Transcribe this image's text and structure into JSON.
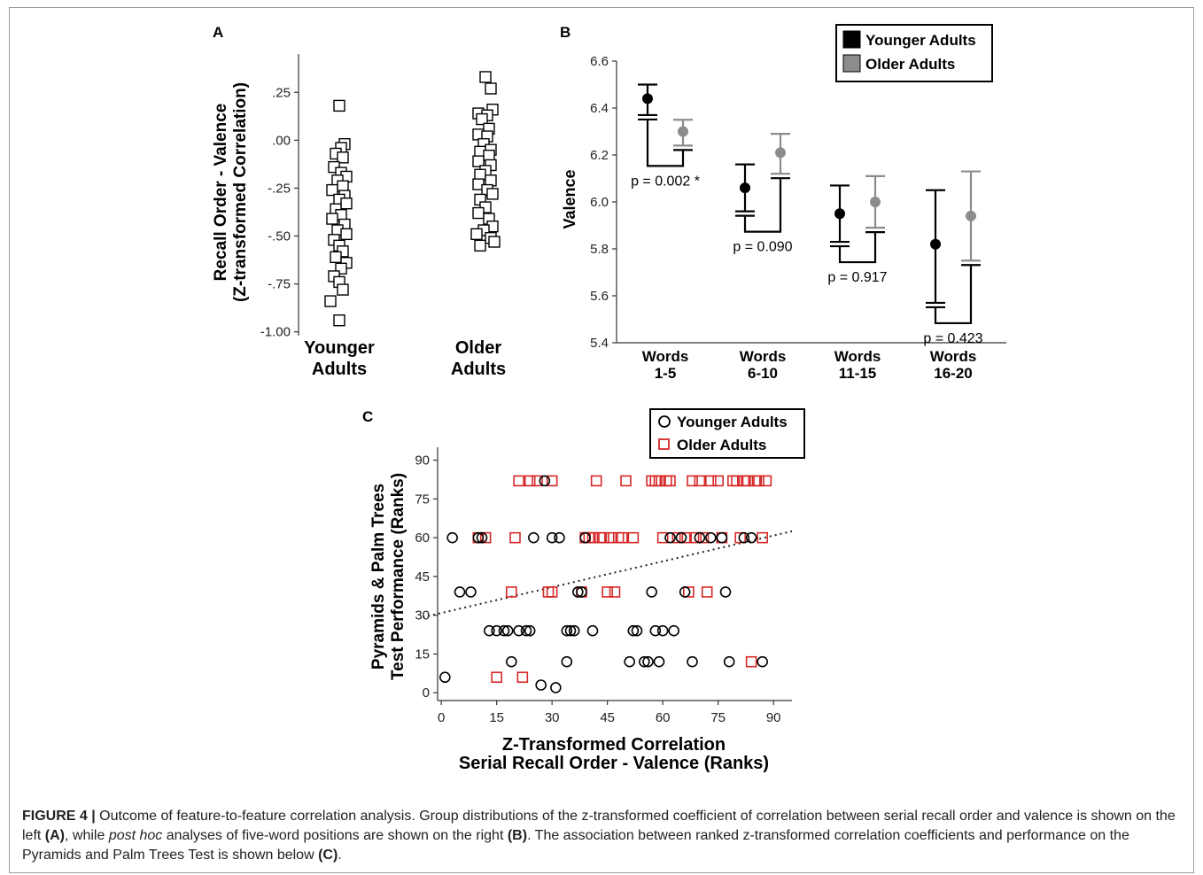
{
  "panel_labels": {
    "a": "A",
    "b": "B",
    "c": "C"
  },
  "chart_data": [
    {
      "panel": "A",
      "type": "scatter",
      "ylabel_line1": "Recall Order - Valence",
      "ylabel_line2": "(Z-transformed Correlation)",
      "yticks": [
        ".25",
        ".00",
        "-.25",
        "-.50",
        "-.75",
        "-1.00"
      ],
      "ytick_values": [
        0.25,
        0.0,
        -0.25,
        -0.5,
        -0.75,
        -1.0
      ],
      "ylim": [
        -1.02,
        0.45
      ],
      "categories": [
        {
          "line1": "Younger",
          "line2": "Adults"
        },
        {
          "line1": "Older",
          "line2": "Adults"
        }
      ],
      "series": [
        {
          "values": [
            0.18,
            -0.02,
            -0.04,
            -0.07,
            -0.09,
            -0.14,
            -0.17,
            -0.19,
            -0.21,
            -0.24,
            -0.26,
            -0.29,
            -0.31,
            -0.33,
            -0.36,
            -0.39,
            -0.41,
            -0.44,
            -0.47,
            -0.49,
            -0.52,
            -0.55,
            -0.58,
            -0.61,
            -0.64,
            -0.67,
            -0.71,
            -0.74,
            -0.78,
            -0.84,
            -0.94
          ],
          "jitter": [
            0.0,
            0.3,
            0.1,
            -0.2,
            0.2,
            -0.3,
            0.1,
            0.4,
            -0.1,
            0.2,
            -0.4,
            0.3,
            0.0,
            0.4,
            -0.2,
            0.1,
            -0.4,
            0.3,
            -0.1,
            0.4,
            -0.3,
            0.0,
            0.2,
            -0.2,
            0.4,
            0.1,
            -0.3,
            0.0,
            0.2,
            -0.5,
            0.0
          ]
        },
        {
          "values": [
            0.33,
            0.27,
            0.16,
            0.14,
            0.13,
            0.11,
            0.06,
            0.03,
            0.02,
            -0.02,
            -0.05,
            -0.06,
            -0.08,
            -0.11,
            -0.13,
            -0.16,
            -0.18,
            -0.21,
            -0.23,
            -0.26,
            -0.28,
            -0.31,
            -0.35,
            -0.38,
            -0.41,
            -0.45,
            -0.47,
            -0.49,
            -0.51,
            -0.53,
            -0.55
          ],
          "jitter": [
            0.0,
            0.3,
            0.4,
            -0.4,
            0.1,
            -0.2,
            0.2,
            -0.4,
            0.1,
            -0.1,
            0.3,
            -0.3,
            0.2,
            -0.4,
            0.3,
            0.0,
            -0.3,
            0.3,
            -0.4,
            0.1,
            0.4,
            -0.3,
            0.0,
            -0.4,
            0.2,
            0.4,
            -0.1,
            -0.5,
            0.3,
            0.5,
            -0.3
          ]
        }
      ]
    },
    {
      "panel": "B",
      "type": "errorbar",
      "ylabel": "Valence",
      "ylim": [
        5.4,
        6.6
      ],
      "yticks": [
        "5.4",
        "5.6",
        "5.8",
        "6.0",
        "6.2",
        "6.4",
        "6.6"
      ],
      "ytick_values": [
        5.4,
        5.6,
        5.8,
        6.0,
        6.2,
        6.4,
        6.6
      ],
      "categories": [
        {
          "line1": "Words",
          "line2": "1-5"
        },
        {
          "line1": "Words",
          "line2": "6-10"
        },
        {
          "line1": "Words",
          "line2": "11-15"
        },
        {
          "line1": "Words",
          "line2": "16-20"
        }
      ],
      "legend": [
        "Younger Adults",
        "Older Adults"
      ],
      "colors": {
        "younger": "#000000",
        "older": "#8c8c8c"
      },
      "series": [
        {
          "mean": [
            6.44,
            6.06,
            5.95,
            5.82
          ],
          "low": [
            6.37,
            5.96,
            5.83,
            5.57
          ],
          "high": [
            6.5,
            6.16,
            6.07,
            6.05
          ]
        },
        {
          "mean": [
            6.3,
            6.21,
            6.0,
            5.94
          ],
          "low": [
            6.24,
            6.12,
            5.89,
            5.75
          ],
          "high": [
            6.35,
            6.29,
            6.11,
            6.13
          ]
        }
      ],
      "pvalues": [
        "p = 0.002 *",
        "p = 0.090",
        "p = 0.917",
        "p = 0.423"
      ]
    },
    {
      "panel": "C",
      "type": "scatter",
      "xlabel_line1": "Z-Transformed Correlation",
      "xlabel_line2": "Serial Recall Order - Valence (Ranks)",
      "ylabel_line1": "Pyramids & Palm Trees",
      "ylabel_line2": "Test Performance (Ranks)",
      "xlim": [
        -1,
        95
      ],
      "ylim": [
        -3,
        95
      ],
      "xticks": [
        "0",
        "15",
        "30",
        "45",
        "60",
        "75",
        "90"
      ],
      "yticks": [
        "0",
        "15",
        "30",
        "45",
        "60",
        "75",
        "90"
      ],
      "legend": [
        "Younger Adults",
        "Older Adults"
      ],
      "colors": {
        "older": "#d62728"
      },
      "trendline": {
        "x": [
          -5,
          95
        ],
        "y": [
          29.2,
          62.5
        ]
      },
      "younger": {
        "x": [
          1,
          3,
          5,
          8,
          10,
          11,
          13,
          15,
          17,
          18,
          19,
          21,
          23,
          25,
          24,
          27,
          28,
          30,
          31,
          32,
          34,
          34,
          35,
          36,
          37,
          38,
          39,
          41,
          51,
          52,
          53,
          55,
          56,
          57,
          58,
          59,
          60,
          62,
          63,
          65,
          66,
          68,
          70,
          73,
          76,
          77,
          78,
          82,
          84,
          87
        ],
        "y": [
          6,
          60,
          39,
          39,
          60,
          60,
          24,
          24,
          24,
          24,
          12,
          24,
          24,
          60,
          24,
          3,
          82,
          60,
          2,
          60,
          24,
          12,
          24,
          24,
          39,
          39,
          60,
          24,
          12,
          24,
          24,
          12,
          12,
          39,
          24,
          12,
          24,
          60,
          24,
          60,
          39,
          12,
          60,
          60,
          60,
          39,
          12,
          60,
          60,
          12
        ]
      },
      "older": {
        "x": [
          10,
          12,
          15,
          19,
          20,
          21,
          22,
          24,
          26,
          29,
          30,
          30,
          38,
          39,
          40,
          41,
          42,
          43,
          44,
          45,
          46,
          47,
          48,
          49,
          50,
          52,
          57,
          58,
          59,
          60,
          61,
          62,
          64,
          66,
          67,
          68,
          69,
          70,
          71,
          72,
          73,
          75,
          76,
          79,
          80,
          81,
          82,
          83,
          84,
          85,
          86,
          87,
          88
        ],
        "y": [
          60,
          60,
          6,
          39,
          60,
          82,
          6,
          82,
          82,
          39,
          39,
          82,
          39,
          60,
          60,
          60,
          82,
          60,
          60,
          39,
          60,
          39,
          60,
          60,
          82,
          60,
          82,
          82,
          82,
          60,
          82,
          82,
          60,
          60,
          39,
          82,
          60,
          82,
          60,
          39,
          82,
          82,
          60,
          82,
          82,
          60,
          82,
          82,
          12,
          82,
          82,
          60,
          82
        ]
      }
    }
  ],
  "caption": {
    "figure_label": "FIGURE 4 |",
    "text_1": " Outcome of feature-to-feature correlation analysis. Group distributions of the z-transformed coefficient of correlation between serial recall order and valence is shown on the left ",
    "ref_a": "(A)",
    "text_2": ", while ",
    "italic": "post hoc",
    "text_3": " analyses of five-word positions are shown on the right ",
    "ref_b": "(B)",
    "text_4": ". The association between ranked z-transformed correlation coefficients and performance on the Pyramids and Palm Trees Test is shown below ",
    "ref_c": "(C)",
    "text_5": "."
  }
}
